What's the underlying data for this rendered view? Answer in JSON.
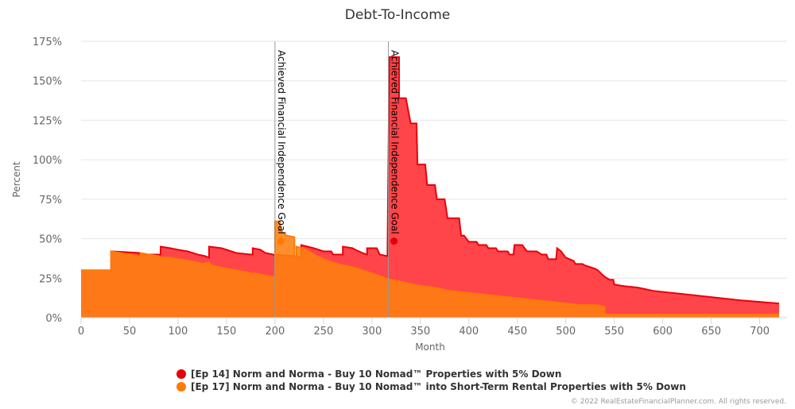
{
  "chart_data": {
    "type": "area",
    "title": "Debt-To-Income",
    "xlabel": "Month",
    "ylabel": "Percent",
    "xlim": [
      0,
      720
    ],
    "ylim": [
      0,
      175
    ],
    "x_ticks": [
      0,
      50,
      100,
      150,
      200,
      250,
      300,
      350,
      400,
      450,
      500,
      550,
      600,
      650,
      700
    ],
    "y_ticks": [
      0,
      25,
      50,
      75,
      100,
      125,
      150,
      175
    ],
    "y_tick_labels": [
      "0%",
      "25%",
      "50%",
      "75%",
      "100%",
      "125%",
      "150%",
      "175%"
    ],
    "grid": true,
    "legend_position": "bottom-center",
    "series": [
      {
        "name": "[Ep 14] Norm and Norma - Buy 10 Nomad™ Properties with 5% Down",
        "color": "#e8000b",
        "fill": "#ff3b3f",
        "points": [
          [
            0,
            30
          ],
          [
            31,
            30
          ],
          [
            31,
            42
          ],
          [
            60,
            41
          ],
          [
            60,
            40
          ],
          [
            82,
            40
          ],
          [
            82,
            45
          ],
          [
            92,
            44
          ],
          [
            100,
            43
          ],
          [
            110,
            42
          ],
          [
            115,
            41
          ],
          [
            120,
            40
          ],
          [
            128,
            39
          ],
          [
            132,
            38
          ],
          [
            132,
            45
          ],
          [
            145,
            44
          ],
          [
            150,
            43
          ],
          [
            160,
            41
          ],
          [
            175,
            40
          ],
          [
            177,
            40
          ],
          [
            177,
            44
          ],
          [
            185,
            43
          ],
          [
            190,
            41
          ],
          [
            198,
            40
          ],
          [
            200,
            39
          ],
          [
            200,
            40
          ],
          [
            220,
            39
          ],
          [
            227,
            38
          ],
          [
            227,
            46
          ],
          [
            240,
            44
          ],
          [
            245,
            43
          ],
          [
            250,
            42
          ],
          [
            258,
            42
          ],
          [
            260,
            40
          ],
          [
            270,
            40
          ],
          [
            270,
            45
          ],
          [
            280,
            44
          ],
          [
            283,
            43
          ],
          [
            290,
            41
          ],
          [
            295,
            40
          ],
          [
            295,
            44
          ],
          [
            305,
            44
          ],
          [
            308,
            40
          ],
          [
            316,
            39
          ],
          [
            316,
            39
          ],
          [
            318,
            165
          ],
          [
            328,
            165
          ],
          [
            328,
            139
          ],
          [
            335,
            139
          ],
          [
            340,
            123
          ],
          [
            346,
            123
          ],
          [
            347,
            97
          ],
          [
            355,
            97
          ],
          [
            357,
            84
          ],
          [
            365,
            84
          ],
          [
            367,
            75
          ],
          [
            375,
            75
          ],
          [
            378,
            63
          ],
          [
            390,
            63
          ],
          [
            392,
            52
          ],
          [
            395,
            52
          ],
          [
            400,
            48
          ],
          [
            408,
            48
          ],
          [
            410,
            46
          ],
          [
            418,
            46
          ],
          [
            420,
            44
          ],
          [
            428,
            44
          ],
          [
            430,
            42
          ],
          [
            440,
            42
          ],
          [
            442,
            40
          ],
          [
            446,
            40
          ],
          [
            447,
            46
          ],
          [
            455,
            46
          ],
          [
            460,
            42
          ],
          [
            470,
            42
          ],
          [
            475,
            40
          ],
          [
            480,
            40
          ],
          [
            482,
            37
          ],
          [
            490,
            37
          ],
          [
            491,
            44
          ],
          [
            495,
            42
          ],
          [
            500,
            38
          ],
          [
            508,
            36
          ],
          [
            510,
            34
          ],
          [
            517,
            34
          ],
          [
            520,
            33
          ],
          [
            525,
            32
          ],
          [
            530,
            31
          ],
          [
            533,
            30
          ],
          [
            538,
            27
          ],
          [
            540,
            26
          ],
          [
            545,
            24
          ],
          [
            549,
            24
          ],
          [
            550,
            21
          ],
          [
            560,
            20
          ],
          [
            575,
            19
          ],
          [
            590,
            17
          ],
          [
            605,
            16
          ],
          [
            620,
            15
          ],
          [
            635,
            14
          ],
          [
            650,
            13
          ],
          [
            665,
            12
          ],
          [
            680,
            11
          ],
          [
            700,
            10
          ],
          [
            720,
            9
          ]
        ]
      },
      {
        "name": "[Ep 17] Norm and Norma - Buy 10 Nomad™ into Short-Term Rental Properties with 5% Down",
        "color": "#ff7a05",
        "fill": "#ff7f10",
        "points": [
          [
            0,
            30
          ],
          [
            31,
            30
          ],
          [
            31,
            42
          ],
          [
            40,
            41
          ],
          [
            50,
            40
          ],
          [
            60,
            39
          ],
          [
            61,
            39
          ],
          [
            61,
            41
          ],
          [
            70,
            40
          ],
          [
            80,
            39
          ],
          [
            82,
            38
          ],
          [
            90,
            38
          ],
          [
            100,
            37
          ],
          [
            110,
            36
          ],
          [
            120,
            35
          ],
          [
            125,
            34
          ],
          [
            132,
            35
          ],
          [
            135,
            33
          ],
          [
            150,
            31
          ],
          [
            160,
            30
          ],
          [
            170,
            29
          ],
          [
            175,
            28
          ],
          [
            180,
            28
          ],
          [
            188,
            27
          ],
          [
            195,
            26
          ],
          [
            200,
            26
          ],
          [
            200,
            61
          ],
          [
            205,
            61
          ],
          [
            206,
            55
          ],
          [
            212,
            52
          ],
          [
            220,
            51
          ],
          [
            220,
            39
          ],
          [
            222,
            39
          ],
          [
            222,
            45
          ],
          [
            228,
            44
          ],
          [
            235,
            42
          ],
          [
            240,
            40
          ],
          [
            250,
            37
          ],
          [
            260,
            35
          ],
          [
            270,
            33
          ],
          [
            280,
            32
          ],
          [
            290,
            30
          ],
          [
            300,
            28
          ],
          [
            310,
            26
          ],
          [
            318,
            24
          ],
          [
            320,
            24
          ],
          [
            335,
            22
          ],
          [
            350,
            20
          ],
          [
            365,
            19
          ],
          [
            380,
            17
          ],
          [
            395,
            16
          ],
          [
            410,
            15
          ],
          [
            425,
            14
          ],
          [
            440,
            13
          ],
          [
            455,
            12
          ],
          [
            470,
            11
          ],
          [
            485,
            10
          ],
          [
            500,
            9
          ],
          [
            515,
            8
          ],
          [
            530,
            8
          ],
          [
            540,
            7
          ],
          [
            540,
            2
          ],
          [
            560,
            2
          ],
          [
            600,
            2
          ],
          [
            650,
            2
          ],
          [
            700,
            2
          ],
          [
            720,
            2
          ]
        ]
      }
    ],
    "plot_lines": [
      {
        "x": 200,
        "label": "Achieved Financial Independence Goal",
        "marker": "●",
        "series": 1
      },
      {
        "x": 317,
        "label": "Achieved Financial Independence Goal",
        "marker": "●",
        "series": 0
      }
    ]
  },
  "credit": "© 2022 RealEstateFinancialPlanner.com. All rights reserved."
}
